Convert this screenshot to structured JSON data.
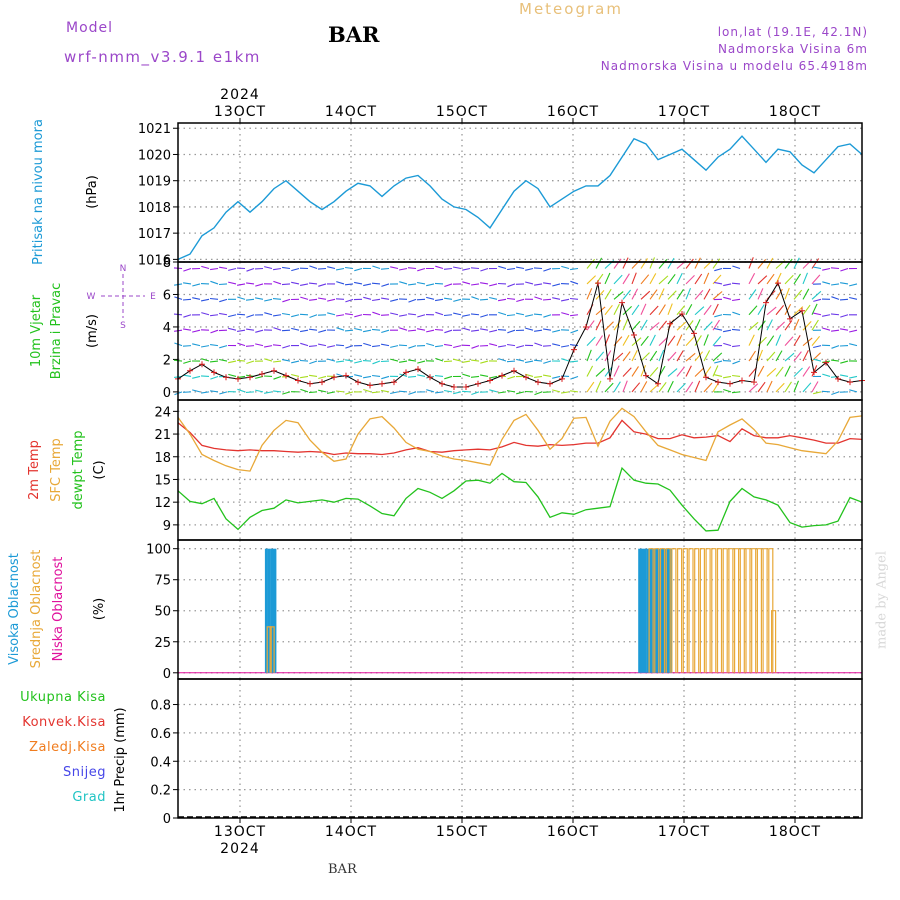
{
  "header": {
    "model_label": "Model",
    "model_name": "wrf-nmm_v3.9.1  e1km",
    "station": "BAR",
    "product": "Meteogram",
    "coords": "lon,lat (19.1E, 42.1N)",
    "elevation": "Nadmorska Visina 6m",
    "model_elevation": "Nadmorska Visina u modelu 65.4918m",
    "footer_station": "BAR",
    "credit": "made by Angel"
  },
  "time_axis": {
    "year": "2024",
    "ticks": [
      "13OCT",
      "14OCT",
      "15OCT",
      "16OCT",
      "17OCT",
      "18OCT"
    ],
    "start": "2024-10-12T12:00",
    "end": "2024-10-18T12:00"
  },
  "chart_data": [
    {
      "type": "line",
      "ylabel": "Pritisak na nivou mora",
      "unit": "(hPa)",
      "yticks": [
        1016,
        1017,
        1018,
        1019,
        1020,
        1021
      ],
      "ylim": [
        1015.9,
        1021.2
      ],
      "series": [
        {
          "name": "Pritisak na nivou mora",
          "color": "#1c9ad6",
          "values": [
            1016.0,
            1016.2,
            1016.9,
            1017.2,
            1017.8,
            1018.2,
            1017.8,
            1018.2,
            1018.7,
            1019.0,
            1018.6,
            1018.2,
            1017.9,
            1018.2,
            1018.6,
            1018.9,
            1018.8,
            1018.4,
            1018.8,
            1019.1,
            1019.2,
            1018.8,
            1018.3,
            1018.0,
            1017.9,
            1017.6,
            1017.2,
            1017.9,
            1018.6,
            1019.0,
            1018.7,
            1018.0,
            1018.3,
            1018.6,
            1018.8,
            1018.8,
            1019.2,
            1019.9,
            1020.6,
            1020.4,
            1019.8,
            1020.0,
            1020.2,
            1019.8,
            1019.4,
            1019.9,
            1020.2,
            1020.7,
            1020.2,
            1019.7,
            1020.2,
            1020.1,
            1019.6,
            1019.3,
            1019.8,
            1020.3,
            1020.4,
            1020.0
          ]
        }
      ]
    },
    {
      "type": "line",
      "ylabel": "10m Vjetar",
      "ylabel2": "Brzina i Pravac",
      "unit": "(m/s)",
      "direction_key": {
        "n": "N",
        "e": "E",
        "w": "W",
        "s": "S"
      },
      "yticks": [
        0,
        2,
        4,
        6,
        8
      ],
      "ylim": [
        -0.5,
        8
      ],
      "series": [
        {
          "name": "10m Vjetar",
          "color": "#d81b1b",
          "values": [
            0.8,
            1.3,
            1.7,
            1.2,
            0.9,
            0.8,
            0.9,
            1.1,
            1.3,
            1.0,
            0.7,
            0.5,
            0.6,
            0.9,
            1.0,
            0.6,
            0.4,
            0.5,
            0.6,
            1.2,
            1.4,
            0.9,
            0.5,
            0.3,
            0.3,
            0.5,
            0.7,
            1.0,
            1.3,
            0.9,
            0.6,
            0.5,
            0.8,
            2.6,
            4.0,
            6.7,
            0.8,
            5.5,
            3.5,
            1.0,
            0.5,
            4.2,
            4.8,
            3.6,
            0.9,
            0.6,
            0.5,
            0.7,
            0.6,
            5.5,
            6.7,
            4.5,
            5.0,
            1.2,
            1.8,
            0.8,
            0.6,
            0.7
          ]
        }
      ]
    },
    {
      "type": "line",
      "ylabel": "2m Temp",
      "ylabel2": "SFC Temp",
      "ylabel3": "dewpt Temp",
      "unit": "(C)",
      "yticks": [
        9,
        12,
        15,
        18,
        21,
        24
      ],
      "ylim": [
        7,
        25.5
      ],
      "series": [
        {
          "name": "2m Temp",
          "color": "#e3342f",
          "values": [
            22.5,
            21.2,
            19.5,
            19.1,
            18.9,
            18.8,
            18.9,
            18.8,
            18.8,
            18.7,
            18.6,
            18.7,
            18.6,
            18.3,
            18.5,
            18.4,
            18.4,
            18.3,
            18.5,
            18.9,
            19.2,
            18.7,
            18.6,
            18.8,
            18.9,
            19.0,
            18.9,
            19.3,
            19.9,
            19.5,
            19.4,
            19.6,
            19.5,
            19.6,
            19.8,
            19.8,
            20.5,
            22.8,
            21.3,
            21.0,
            20.4,
            20.4,
            20.9,
            20.5,
            20.6,
            20.8,
            20.0,
            21.7,
            20.8,
            20.5,
            20.5,
            20.8,
            20.5,
            20.2,
            19.8,
            19.8,
            20.4,
            20.3
          ]
        },
        {
          "name": "SFC Temp",
          "color": "#e8a838",
          "values": [
            23.2,
            21.0,
            18.3,
            17.5,
            16.8,
            16.3,
            16.1,
            19.5,
            21.5,
            22.8,
            22.5,
            20.2,
            18.6,
            17.4,
            17.7,
            21.0,
            23.0,
            23.3,
            21.8,
            19.9,
            19.0,
            18.7,
            18.1,
            17.7,
            17.5,
            17.2,
            16.9,
            20.3,
            22.8,
            23.6,
            21.5,
            19.0,
            20.4,
            23.1,
            23.2,
            19.4,
            22.7,
            24.4,
            23.3,
            21.3,
            19.5,
            18.9,
            18.3,
            17.9,
            17.5,
            21.3,
            22.2,
            23.0,
            21.6,
            19.8,
            19.6,
            19.2,
            18.8,
            18.6,
            18.4,
            20.1,
            23.2,
            23.4
          ]
        },
        {
          "name": "dewpt Temp",
          "color": "#23c21d",
          "values": [
            13.5,
            12.1,
            11.8,
            12.5,
            9.8,
            8.4,
            10.0,
            10.9,
            11.2,
            12.3,
            11.9,
            12.1,
            12.3,
            12.0,
            12.5,
            12.4,
            11.5,
            10.5,
            10.2,
            12.5,
            13.8,
            13.3,
            12.5,
            13.5,
            14.8,
            14.9,
            14.5,
            15.8,
            14.7,
            14.6,
            12.7,
            10.0,
            10.6,
            10.4,
            11.0,
            11.2,
            11.4,
            16.5,
            14.9,
            14.5,
            14.4,
            13.6,
            11.6,
            9.8,
            8.2,
            8.3,
            12.1,
            13.8,
            12.7,
            12.3,
            11.6,
            9.3,
            8.7,
            8.9,
            9.0,
            9.5,
            12.6,
            12.0
          ]
        }
      ]
    },
    {
      "type": "bar",
      "ylabel": "Visoka Oblacnost",
      "ylabel2": "Srednja Oblacnost",
      "ylabel3": "Niska Oblacnost",
      "unit": "(%)",
      "yticks": [
        0,
        25,
        50,
        75,
        100
      ],
      "ylim": [
        -5,
        107
      ],
      "series": [
        {
          "name": "Visoka Oblacnost",
          "color": "#1c9ad6",
          "x": [
            31,
            32,
            33,
            34,
            162,
            163,
            164,
            165,
            166,
            167,
            168,
            169,
            170,
            171,
            172,
            173
          ],
          "values": [
            100,
            100,
            100,
            100,
            100,
            100,
            100,
            100,
            100,
            100,
            100,
            100,
            100,
            100,
            100,
            100
          ]
        },
        {
          "name": "Srednja Oblacnost",
          "color": "#e8a838",
          "x": [
            32,
            33,
            166,
            168,
            170,
            172,
            174,
            176,
            178,
            180,
            182,
            184,
            186,
            188,
            190,
            192,
            194,
            196,
            198,
            200,
            202,
            204,
            206,
            208,
            209
          ],
          "values": [
            37,
            37,
            100,
            100,
            100,
            100,
            100,
            100,
            100,
            100,
            100,
            100,
            100,
            100,
            100,
            100,
            100,
            100,
            100,
            100,
            100,
            100,
            100,
            100,
            50
          ]
        },
        {
          "name": "Niska Oblacnost",
          "color": "#e0109c",
          "x": [],
          "values": []
        }
      ]
    },
    {
      "type": "bar",
      "ylabel": "1hr Precip",
      "unit": "(mm)",
      "yticks": [
        0,
        0.2,
        0.4,
        0.6,
        0.8
      ],
      "ylim": [
        0,
        0.98
      ],
      "legend": [
        {
          "name": "Ukupna Kisa",
          "color": "#23c21d"
        },
        {
          "name": "Konvek.Kisa",
          "color": "#e3342f"
        },
        {
          "name": "Zaledj.Kisa",
          "color": "#f07c1e"
        },
        {
          "name": "Snijeg",
          "color": "#4646e8"
        },
        {
          "name": "Grad",
          "color": "#1fc4c4"
        }
      ],
      "series": []
    }
  ]
}
